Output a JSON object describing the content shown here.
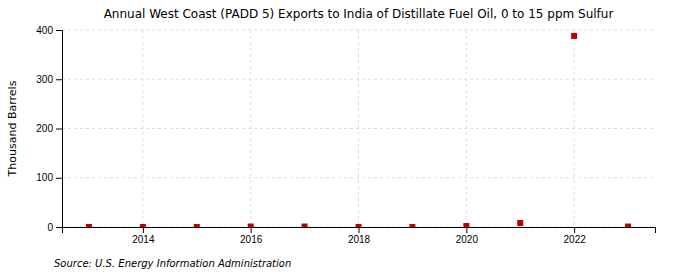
{
  "chart_data": {
    "type": "scatter",
    "title": "Annual West Coast (PADD 5) Exports to India of Distillate Fuel Oil, 0 to 15 ppm Sulfur",
    "ylabel": "Thousand Barrels",
    "annotations": [
      "Source: U.S. Energy Information Administration"
    ],
    "x": [
      2013,
      2014,
      2015,
      2016,
      2017,
      2018,
      2019,
      2020,
      2021,
      2022,
      2023
    ],
    "values": [
      0,
      0,
      0,
      1,
      1,
      0,
      0,
      2,
      8,
      388,
      1
    ],
    "color": "#c00000",
    "marker": "square",
    "xlim": [
      2012.5,
      2023.5
    ],
    "ylim": [
      0,
      400
    ],
    "xticks": [
      2014,
      2016,
      2018,
      2020,
      2022
    ],
    "yticks": [
      0,
      100,
      200,
      300,
      400
    ],
    "grid": true
  }
}
